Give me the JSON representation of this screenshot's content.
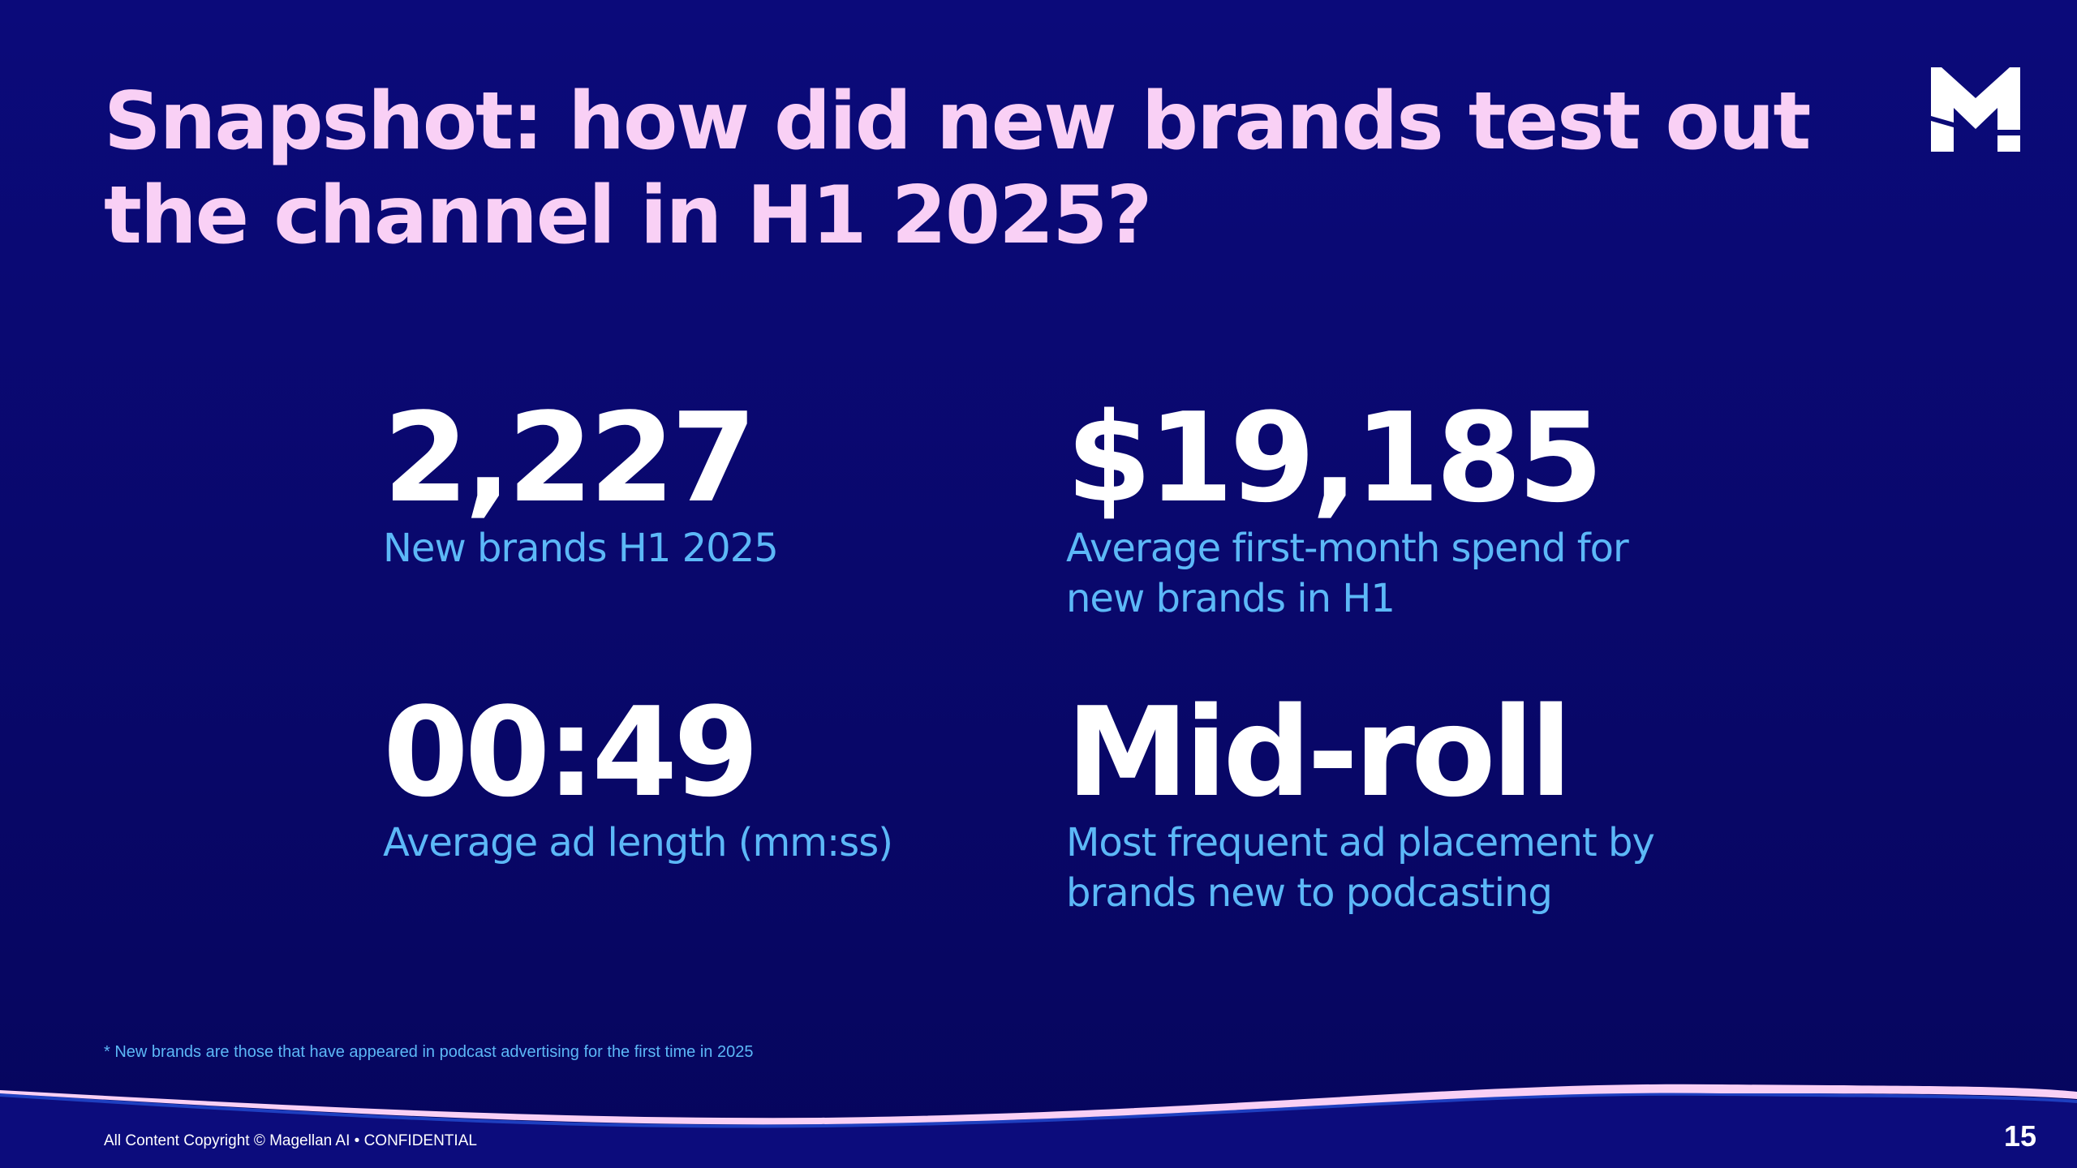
{
  "header": {
    "title": "Snapshot: how did new brands test out the channel in H1 2025?",
    "logo_text": "M"
  },
  "stats": [
    {
      "value": "2,227",
      "label": "New brands H1 2025"
    },
    {
      "value": "$19,185",
      "label": "Average first-month spend for new brands in H1"
    },
    {
      "value": "00:49",
      "label": "Average ad length (mm:ss)"
    },
    {
      "value": "Mid-roll",
      "label": "Most frequent ad placement by brands new to podcasting"
    }
  ],
  "footnote": "* New brands are those that have appeared in podcast advertising for the first time in 2025",
  "footer": {
    "copyright": "All Content Copyright © Magellan AI • CONFIDENTIAL",
    "page_number": "15"
  },
  "colors": {
    "title": "#f9d0f5",
    "label": "#5cb8f7",
    "background": "#0b0a7a"
  }
}
